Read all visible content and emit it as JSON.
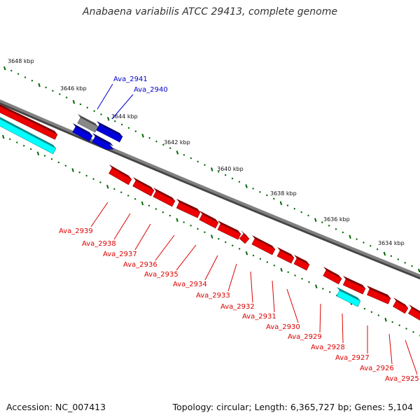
{
  "title": "Anabaena variabilis ATCC 29413, complete genome",
  "footer": {
    "accession": "Accession: NC_007413",
    "summary": "Topology: circular; Length: 6,365,727 bp; Genes: 5,104"
  },
  "colors": {
    "backbone": "#808080",
    "forward_gene": "#0000dd",
    "reverse_gene": "#ee0000",
    "rna_gene": "#00ffff",
    "pseudo_gene": "#777777",
    "tick": "#006600",
    "forward_label": "#0000cc",
    "reverse_label": "#dd0000"
  },
  "scale_ticks": [
    {
      "label": "3648 kbp",
      "kbp": 3648
    },
    {
      "label": "3646 kbp",
      "kbp": 3646
    },
    {
      "label": "3644 kbp",
      "kbp": 3644
    },
    {
      "label": "3642 kbp",
      "kbp": 3642
    },
    {
      "label": "3640 kbp",
      "kbp": 3640
    },
    {
      "label": "3638 kbp",
      "kbp": 3638
    },
    {
      "label": "3636 kbp",
      "kbp": 3636
    },
    {
      "label": "3634 kbp",
      "kbp": 3634
    }
  ],
  "forward_labels": [
    "Ava_2941",
    "Ava_2940"
  ],
  "reverse_labels": [
    "Ava_2939",
    "Ava_2938",
    "Ava_2937",
    "Ava_2936",
    "Ava_2935",
    "Ava_2934",
    "Ava_2933",
    "Ava_2932",
    "Ava_2931",
    "Ava_2930",
    "Ava_2929",
    "Ava_2928",
    "Ava_2927",
    "Ava_2926",
    "Ava_2925"
  ]
}
